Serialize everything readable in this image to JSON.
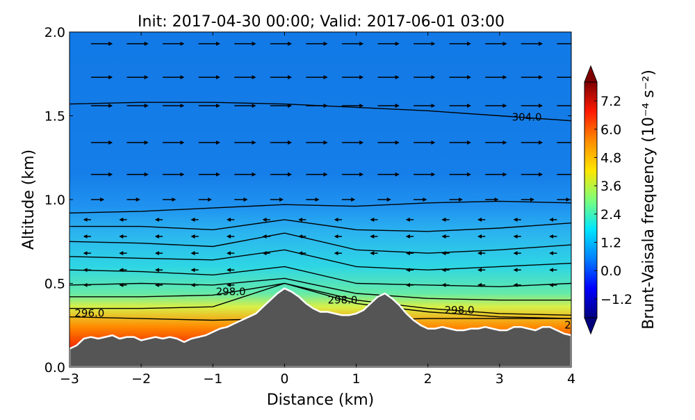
{
  "chart_data": {
    "type": "heatmap",
    "title": "Init: 2017-04-30 00:00; Valid: 2017-06-01 03:00",
    "xlabel": "Distance (km)",
    "ylabel": "Altitude (km)",
    "xlim": [
      -3,
      4
    ],
    "ylim": [
      0.0,
      2.0
    ],
    "xticks": [
      "−3",
      "−2",
      "−1",
      "0",
      "1",
      "2",
      "3",
      "4"
    ],
    "yticks": [
      "0.0",
      "0.5",
      "1.0",
      "1.5",
      "2.0"
    ],
    "colorbar": {
      "label": "Brunt-Vaisala frequency (10⁻⁴ s⁻²)",
      "range": [
        -2.0,
        8.0
      ],
      "ticks": [
        "−1.2",
        "0.0",
        "1.2",
        "2.4",
        "3.6",
        "4.8",
        "6.0",
        "7.2"
      ],
      "colormap": "jet",
      "extend": "both"
    },
    "contour_labels": [
      {
        "text": "296.0",
        "x": -2.72,
        "y": 0.3
      },
      {
        "text": "298.0",
        "x": -0.75,
        "y": 0.43
      },
      {
        "text": "298.0",
        "x": 0.81,
        "y": 0.38
      },
      {
        "text": "298.0",
        "x": 2.44,
        "y": 0.32
      },
      {
        "text": "304.0",
        "x": 3.38,
        "y": 1.47
      },
      {
        "text": "2",
        "x": 3.95,
        "y": 0.23
      }
    ],
    "terrain": {
      "x": [
        -3.0,
        -2.9,
        -2.8,
        -2.7,
        -2.6,
        -2.5,
        -2.4,
        -2.3,
        -2.2,
        -2.1,
        -2.0,
        -1.9,
        -1.8,
        -1.7,
        -1.6,
        -1.5,
        -1.4,
        -1.3,
        -1.2,
        -1.1,
        -1.0,
        -0.9,
        -0.8,
        -0.7,
        -0.6,
        -0.5,
        -0.4,
        -0.3,
        -0.2,
        -0.1,
        0.0,
        0.1,
        0.2,
        0.3,
        0.4,
        0.5,
        0.6,
        0.7,
        0.8,
        0.9,
        1.0,
        1.1,
        1.2,
        1.3,
        1.4,
        1.5,
        1.6,
        1.7,
        1.8,
        1.9,
        2.0,
        2.1,
        2.2,
        2.3,
        2.4,
        2.5,
        2.6,
        2.7,
        2.8,
        2.9,
        3.0,
        3.1,
        3.2,
        3.3,
        3.4,
        3.5,
        3.6,
        3.7,
        3.8,
        3.9,
        4.0
      ],
      "y": [
        0.11,
        0.13,
        0.17,
        0.18,
        0.17,
        0.18,
        0.19,
        0.17,
        0.18,
        0.18,
        0.16,
        0.17,
        0.18,
        0.17,
        0.18,
        0.17,
        0.15,
        0.17,
        0.18,
        0.19,
        0.21,
        0.23,
        0.24,
        0.26,
        0.28,
        0.3,
        0.32,
        0.36,
        0.4,
        0.44,
        0.47,
        0.45,
        0.42,
        0.38,
        0.35,
        0.33,
        0.33,
        0.32,
        0.31,
        0.31,
        0.32,
        0.34,
        0.38,
        0.42,
        0.44,
        0.41,
        0.37,
        0.32,
        0.28,
        0.25,
        0.23,
        0.23,
        0.24,
        0.23,
        0.22,
        0.22,
        0.23,
        0.23,
        0.24,
        0.23,
        0.22,
        0.22,
        0.24,
        0.24,
        0.23,
        0.22,
        0.24,
        0.24,
        0.22,
        0.2,
        0.19
      ]
    },
    "theta_contours": [
      {
        "level": 296,
        "y": [
          0.3,
          0.29,
          0.28,
          0.29,
          0.28,
          0.29,
          0.29,
          0.29
        ]
      },
      {
        "level": 297,
        "y": [
          0.35,
          0.35,
          0.36,
          0.5,
          0.38,
          0.33,
          0.3,
          0.29
        ]
      },
      {
        "level": 298,
        "y": [
          0.42,
          0.42,
          0.43,
          0.5,
          0.4,
          0.35,
          0.32,
          0.31
        ]
      },
      {
        "level": 299,
        "y": [
          0.49,
          0.5,
          0.49,
          0.53,
          0.44,
          0.41,
          0.4,
          0.4
        ]
      },
      {
        "level": 300,
        "y": [
          0.58,
          0.57,
          0.55,
          0.6,
          0.5,
          0.49,
          0.48,
          0.5
        ]
      },
      {
        "level": 301,
        "y": [
          0.66,
          0.65,
          0.64,
          0.7,
          0.6,
          0.58,
          0.6,
          0.62
        ]
      },
      {
        "level": 302,
        "y": [
          0.75,
          0.74,
          0.72,
          0.8,
          0.7,
          0.68,
          0.7,
          0.73
        ]
      },
      {
        "level": 303,
        "y": [
          0.84,
          0.84,
          0.82,
          0.88,
          0.82,
          0.81,
          0.83,
          0.86
        ]
      },
      {
        "level": 303.5,
        "y": [
          0.92,
          0.93,
          0.95,
          0.97,
          0.96,
          0.98,
          0.99,
          0.98
        ]
      },
      {
        "level": 304,
        "y": [
          1.57,
          1.58,
          1.58,
          1.57,
          1.55,
          1.53,
          1.5,
          1.47
        ]
      }
    ]
  }
}
